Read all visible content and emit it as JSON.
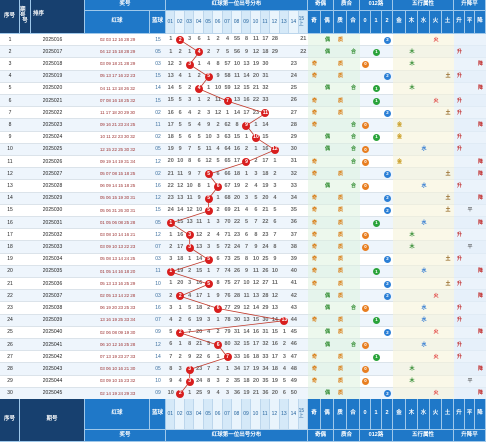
{
  "header": {
    "serial": "序号",
    "period": "期号",
    "period_sub": "号",
    "sort_label": "排序",
    "prize": "奖号",
    "red": "红球",
    "blue": "蓝球",
    "first_pos": "红球第一位出号分布",
    "odd_even": "奇偶",
    "odd": "奇",
    "even": "偶",
    "prime_comp": "质合",
    "prime": "质",
    "comp": "合",
    "route": "012路",
    "r0": "0",
    "r1": "1",
    "r2": "2",
    "five": "五行属性",
    "jin": "金",
    "mu": "木",
    "shui": "水",
    "huo": "火",
    "tu": "土",
    "trend": "升降平",
    "sheng": "升",
    "ping": "平",
    "jiang": "降",
    "num_cols": [
      "01",
      "02",
      "03",
      "04",
      "05",
      "06",
      "07",
      "08",
      "09",
      "10",
      "11",
      "12",
      "13",
      "14",
      "15 上"
    ]
  },
  "rows": [
    {
      "sn": "1",
      "date": "2025016",
      "nums": "02 03 12 16 28 29",
      "blue": "15",
      "pos": 2,
      "miss": [
        "1",
        "",
        "3",
        "6",
        "1",
        "2",
        "4",
        "55",
        "8",
        "11",
        "17",
        "28",
        "",
        "",
        "21"
      ],
      "oe": "even",
      "pc": "prime",
      "route": 2,
      "wx": "huo",
      "trend": ""
    },
    {
      "sn": "2",
      "date": "2025017",
      "nums": "04 12 15 18 28 29",
      "blue": "05",
      "pos": 4,
      "miss": [
        "1",
        "2",
        "1",
        "",
        "2",
        "7",
        "5",
        "56",
        "9",
        "12",
        "18",
        "29",
        "",
        "",
        "22"
      ],
      "oe": "even",
      "pc": "comp",
      "route": 1,
      "wx": "mu",
      "trend": "sheng"
    },
    {
      "sn": "3",
      "date": "2025018",
      "nums": "03 09 18 21 28 29",
      "blue": "03",
      "pos": 3,
      "miss": [
        "12",
        "3",
        "",
        "1",
        "4",
        "8",
        "57",
        "10",
        "13",
        "19",
        "30",
        "",
        "",
        "23",
        ""
      ],
      "oe": "odd",
      "pc": "prime",
      "route": 0,
      "wx": "mu",
      "trend": "jiang"
    },
    {
      "sn": "4",
      "date": "2025019",
      "nums": "05 13 17 16 22 23",
      "blue": "15",
      "pos": 5,
      "miss": [
        "13",
        "4",
        "1",
        "2",
        "",
        "9",
        "58",
        "11",
        "14",
        "20",
        "31",
        "",
        "",
        "24",
        ""
      ],
      "oe": "odd",
      "pc": "prime",
      "route": 2,
      "wx": "tu",
      "trend": "sheng"
    },
    {
      "sn": "5",
      "date": "2025020",
      "nums": "04 11 13 18 26 32",
      "blue": "14",
      "pos": 4,
      "miss": [
        "14",
        "5",
        "2",
        "",
        "1",
        "10",
        "59",
        "12",
        "15",
        "21",
        "32",
        "",
        "",
        "25",
        ""
      ],
      "oe": "even",
      "pc": "comp",
      "route": 1,
      "wx": "mu",
      "trend": "jiang"
    },
    {
      "sn": "6",
      "date": "2025021",
      "nums": "07 08 16 18 25 32",
      "blue": "15",
      "pos": 7,
      "miss": [
        "15",
        "5",
        "3",
        "1",
        "2",
        "11",
        "",
        "13",
        "16",
        "22",
        "33",
        "",
        "",
        "26",
        ""
      ],
      "oe": "odd",
      "pc": "prime",
      "route": 1,
      "wx": "huo",
      "trend": "sheng"
    },
    {
      "sn": "7",
      "date": "2025022",
      "nums": "11 17 18 20 29 30",
      "blue": "02",
      "pos": 11,
      "miss": [
        "16",
        "6",
        "4",
        "2",
        "3",
        "12",
        "1",
        "14",
        "17",
        "23",
        "",
        "",
        "",
        "27",
        ""
      ],
      "oe": "odd",
      "pc": "prime",
      "route": 2,
      "wx": "tu",
      "trend": "sheng"
    },
    {
      "sn": "8",
      "date": "2025023",
      "nums": "09 16 21 23 24 25",
      "blue": "11",
      "pos": 9,
      "miss": [
        "17",
        "5",
        "5",
        "4",
        "9",
        "2",
        "62",
        "8",
        "",
        "1",
        "14",
        "",
        "",
        "28",
        ""
      ],
      "oe": "odd",
      "pc": "comp",
      "route": 0,
      "wx": "jin",
      "trend": "jiang"
    },
    {
      "sn": "9",
      "date": "2025024",
      "nums": "10 11 22 23 30 32",
      "blue": "02",
      "pos": 10,
      "miss": [
        "18",
        "5",
        "6",
        "5",
        "10",
        "3",
        "63",
        "15",
        "1",
        "",
        "15",
        "",
        "",
        "29",
        ""
      ],
      "oe": "even",
      "pc": "comp",
      "route": 1,
      "wx": "jin",
      "trend": "sheng"
    },
    {
      "sn": "10",
      "date": "2025025",
      "nums": "12 15 22 25 30 32",
      "blue": "05",
      "pos": 12,
      "miss": [
        "19",
        "9",
        "7",
        "5",
        "11",
        "4",
        "64",
        "16",
        "2",
        "1",
        "16",
        "",
        "",
        "30",
        ""
      ],
      "oe": "even",
      "pc": "comp",
      "route": 0,
      "wx": "shui",
      "trend": "sheng"
    },
    {
      "sn": "11",
      "date": "2025026",
      "nums": "09 19 14 19 31 34",
      "blue": "12",
      "pos": 9,
      "miss": [
        "20",
        "10",
        "8",
        "6",
        "12",
        "5",
        "65",
        "17",
        "",
        "2",
        "17",
        "1",
        "",
        "31",
        ""
      ],
      "oe": "odd",
      "pc": "comp",
      "route": 0,
      "wx": "jin",
      "trend": "jiang"
    },
    {
      "sn": "12",
      "date": "2025027",
      "nums": "05 07 08 15 18 25",
      "blue": "02",
      "pos": 5,
      "miss": [
        "21",
        "11",
        "9",
        "7",
        "",
        "6",
        "66",
        "18",
        "1",
        "3",
        "18",
        "2",
        "",
        "32",
        ""
      ],
      "oe": "odd",
      "pc": "prime",
      "route": 2,
      "wx": "tu",
      "trend": "jiang"
    },
    {
      "sn": "13",
      "date": "2025028",
      "nums": "06 09 14 15 18 25",
      "blue": "16",
      "pos": 6,
      "miss": [
        "22",
        "12",
        "10",
        "8",
        "1",
        "",
        "67",
        "19",
        "2",
        "4",
        "19",
        "3",
        "",
        "33",
        ""
      ],
      "oe": "even",
      "pc": "comp",
      "route": 0,
      "wx": "shui",
      "trend": "sheng"
    },
    {
      "sn": "14",
      "date": "2025029",
      "nums": "05 06 15 19 30 31",
      "blue": "12",
      "pos": 5,
      "miss": [
        "23",
        "13",
        "11",
        "9",
        "",
        "1",
        "68",
        "20",
        "3",
        "5",
        "20",
        "4",
        "",
        "34",
        ""
      ],
      "oe": "odd",
      "pc": "prime",
      "route": 2,
      "wx": "tu",
      "trend": "jiang"
    },
    {
      "sn": "15",
      "date": "2025030",
      "nums": "05 06 31 26 30 31",
      "blue": "15",
      "pos": 5,
      "miss": [
        "24",
        "14",
        "12",
        "10",
        "",
        "2",
        "69",
        "21",
        "4",
        "6",
        "21",
        "5",
        "",
        "35",
        ""
      ],
      "oe": "odd",
      "pc": "prime",
      "route": 2,
      "wx": "tu",
      "trend": "ping"
    },
    {
      "sn": "16",
      "date": "2025031",
      "nums": "01 05 06 08 25 28",
      "blue": "05",
      "pos": 1,
      "miss": [
        "",
        "15",
        "13",
        "11",
        "1",
        "3",
        "70",
        "22",
        "5",
        "7",
        "22",
        "6",
        "",
        "36",
        ""
      ],
      "oe": "odd",
      "pc": "prime",
      "route": 1,
      "wx": "shui",
      "trend": "jiang"
    },
    {
      "sn": "17",
      "date": "2025032",
      "nums": "03 08 10 14 16 21",
      "blue": "12",
      "pos": 3,
      "miss": [
        "1",
        "16",
        "",
        "12",
        "2",
        "4",
        "71",
        "23",
        "6",
        "8",
        "23",
        "7",
        "",
        "37",
        ""
      ],
      "oe": "odd",
      "pc": "prime",
      "route": 0,
      "wx": "mu",
      "trend": "sheng"
    },
    {
      "sn": "18",
      "date": "2025033",
      "nums": "03 09 10 13 22 23",
      "blue": "07",
      "pos": 3,
      "miss": [
        "2",
        "17",
        "",
        "13",
        "3",
        "5",
        "72",
        "24",
        "7",
        "9",
        "24",
        "8",
        "",
        "38",
        ""
      ],
      "oe": "odd",
      "pc": "prime",
      "route": 0,
      "wx": "mu",
      "trend": "ping"
    },
    {
      "sn": "19",
      "date": "2025034",
      "nums": "05 08 13 14 24 25",
      "blue": "03",
      "pos": 5,
      "miss": [
        "3",
        "18",
        "1",
        "14",
        "",
        "6",
        "73",
        "25",
        "8",
        "10",
        "25",
        "9",
        "",
        "39",
        ""
      ],
      "oe": "odd",
      "pc": "prime",
      "route": 2,
      "wx": "tu",
      "trend": "sheng"
    },
    {
      "sn": "20",
      "date": "2025035",
      "nums": "01 05 14 16 18 20",
      "blue": "11",
      "pos": 1,
      "miss": [
        "",
        "19",
        "2",
        "15",
        "1",
        "7",
        "74",
        "26",
        "9",
        "11",
        "26",
        "10",
        "",
        "40",
        ""
      ],
      "oe": "odd",
      "pc": "prime",
      "route": 1,
      "wx": "shui",
      "trend": "jiang"
    },
    {
      "sn": "21",
      "date": "2025036",
      "nums": "05 13 13 16 25 29",
      "blue": "10",
      "pos": 5,
      "miss": [
        "1",
        "20",
        "3",
        "16",
        "",
        "8",
        "75",
        "27",
        "10",
        "12",
        "27",
        "11",
        "",
        "41",
        ""
      ],
      "oe": "odd",
      "pc": "prime",
      "route": 2,
      "wx": "tu",
      "trend": "sheng"
    },
    {
      "sn": "22",
      "date": "2025037",
      "nums": "02 05 13 14 22 28",
      "blue": "03",
      "pos": 2,
      "miss": [
        "2",
        "",
        "4",
        "17",
        "1",
        "9",
        "76",
        "28",
        "11",
        "13",
        "28",
        "12",
        "",
        "42",
        ""
      ],
      "oe": "even",
      "pc": "prime",
      "route": 2,
      "wx": "huo",
      "trend": "jiang"
    },
    {
      "sn": "23",
      "date": "2025038",
      "nums": "06 19 20 23 25 33",
      "blue": "16",
      "pos": 6,
      "miss": [
        "3",
        "1",
        "5",
        "18",
        "2",
        "",
        "77",
        "29",
        "12",
        "14",
        "29",
        "13",
        "",
        "43",
        ""
      ],
      "oe": "even",
      "pc": "comp",
      "route": 0,
      "wx": "shui",
      "trend": "sheng"
    },
    {
      "sn": "24",
      "date": "2025039",
      "nums": "13 16 19 25 33 34",
      "blue": "07",
      "pos": 13,
      "miss": [
        "4",
        "2",
        "6",
        "19",
        "3",
        "1",
        "78",
        "30",
        "13",
        "15",
        "30",
        "14",
        "",
        "44",
        ""
      ],
      "oe": "odd",
      "pc": "prime",
      "route": 1,
      "wx": "shui",
      "trend": "sheng"
    },
    {
      "sn": "25",
      "date": "2025040",
      "nums": "02 06 08 09 19 30",
      "blue": "09",
      "pos": 2,
      "miss": [
        "5",
        "",
        "7",
        "20",
        "4",
        "2",
        "79",
        "31",
        "14",
        "16",
        "31",
        "15",
        "1",
        "45",
        ""
      ],
      "oe": "even",
      "pc": "prime",
      "route": 2,
      "wx": "huo",
      "trend": "jiang"
    },
    {
      "sn": "26",
      "date": "2025041",
      "nums": "06 10 12 16 25 28",
      "blue": "12",
      "pos": 6,
      "miss": [
        "6",
        "1",
        "8",
        "21",
        "5",
        "",
        "80",
        "32",
        "15",
        "17",
        "32",
        "16",
        "2",
        "46",
        ""
      ],
      "oe": "even",
      "pc": "comp",
      "route": 0,
      "wx": "shui",
      "trend": "sheng"
    },
    {
      "sn": "27",
      "date": "2025042",
      "nums": "07 13 19 23 27 33",
      "blue": "14",
      "pos": 7,
      "miss": [
        "7",
        "2",
        "9",
        "22",
        "6",
        "1",
        "",
        "33",
        "16",
        "18",
        "33",
        "17",
        "3",
        "47",
        ""
      ],
      "oe": "odd",
      "pc": "prime",
      "route": 1,
      "wx": "huo",
      "trend": "sheng"
    },
    {
      "sn": "28",
      "date": "2025043",
      "nums": "03 06 10 16 21 30",
      "blue": "05",
      "pos": 3,
      "miss": [
        "8",
        "3",
        "",
        "23",
        "7",
        "2",
        "1",
        "34",
        "17",
        "19",
        "34",
        "18",
        "4",
        "48",
        ""
      ],
      "oe": "odd",
      "pc": "prime",
      "route": 0,
      "wx": "mu",
      "trend": "jiang"
    },
    {
      "sn": "29",
      "date": "2025044",
      "nums": "03 09 10 15 23 32",
      "blue": "10",
      "pos": 3,
      "miss": [
        "9",
        "4",
        "",
        "24",
        "8",
        "3",
        "2",
        "35",
        "18",
        "20",
        "35",
        "19",
        "5",
        "49",
        ""
      ],
      "oe": "odd",
      "pc": "prime",
      "route": 0,
      "wx": "mu",
      "trend": "ping"
    },
    {
      "sn": "30",
      "date": "2025045",
      "nums": "02 14 19 24 29 33",
      "blue": "09",
      "pos": 2,
      "miss": [
        "10",
        "",
        "1",
        "25",
        "9",
        "4",
        "3",
        "36",
        "19",
        "21",
        "36",
        "20",
        "6",
        "50",
        ""
      ],
      "oe": "even",
      "pc": "prime",
      "route": 2,
      "wx": "huo",
      "trend": "jiang"
    }
  ],
  "footer": {
    "serial": "序号",
    "period": "期号",
    "prize": "奖号",
    "red": "红球",
    "blue": "蓝球",
    "first_pos": "红球第一位出号分布",
    "odd_even": "奇偶",
    "prime_comp": "质合",
    "route": "012路",
    "five": "五行属性",
    "trend": "升降平"
  },
  "colors": {
    "header_blue": "#1f78c8",
    "header_dark": "#17406f",
    "ball_red": "#d81e1e",
    "route0": "#e87e22",
    "route1": "#2aa33a",
    "route2": "#2b7fd6",
    "row_alt": "#eef5fc",
    "band_green": "#dff2df",
    "band_blue": "#e3eef9",
    "band_yellow": "#f7f4d8"
  }
}
